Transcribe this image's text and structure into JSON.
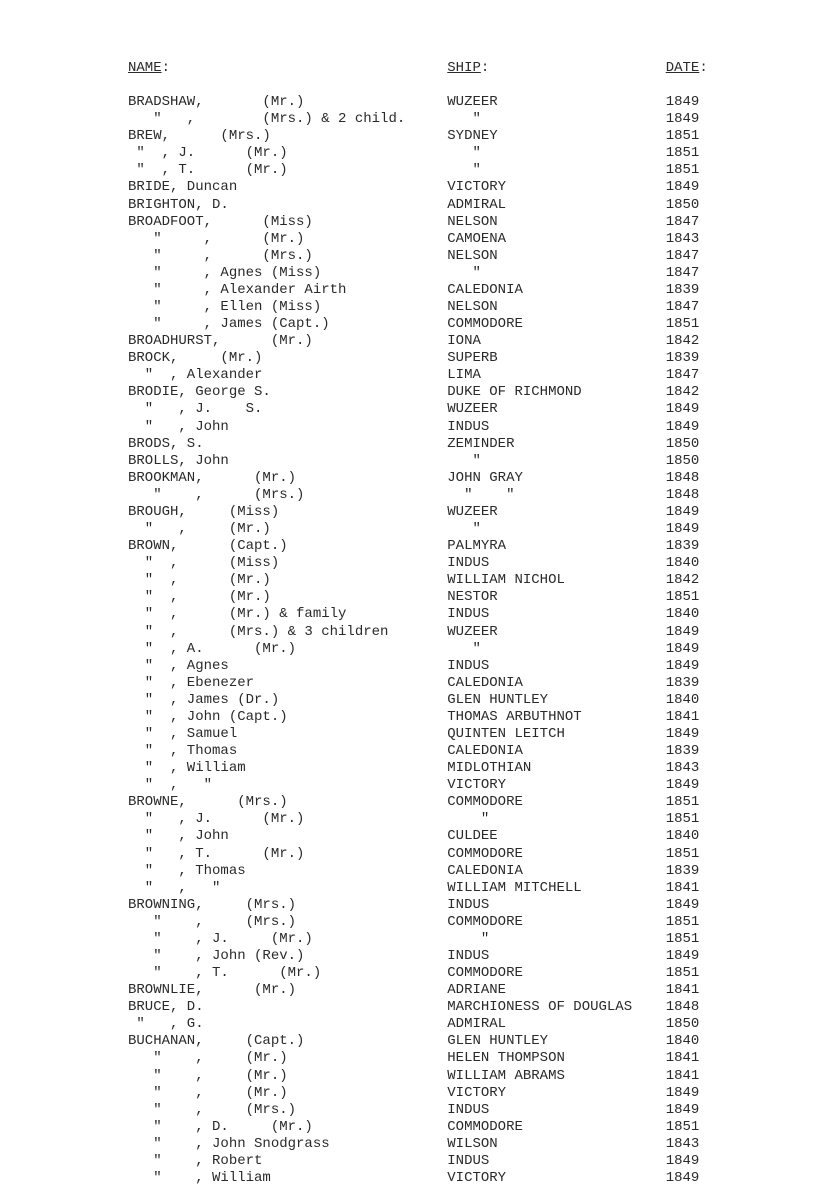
{
  "header": {
    "name": "NAME",
    "ship": "SHIP",
    "date": "DATE",
    "colon": ":"
  },
  "name_pad": 38,
  "ship_pad": 26,
  "rows": [
    {
      "name": "BRADSHAW,       (Mr.)",
      "ship": "WUZEER",
      "date": "1849"
    },
    {
      "name": "   \"   ,        (Mrs.) & 2 child.",
      "ship": "   \"",
      "date": "1849"
    },
    {
      "name": "BREW,      (Mrs.)",
      "ship": "SYDNEY",
      "date": "1851"
    },
    {
      "name": " \"  , J.      (Mr.)",
      "ship": "   \"",
      "date": "1851"
    },
    {
      "name": " \"  , T.      (Mr.)",
      "ship": "   \"",
      "date": "1851"
    },
    {
      "name": "BRIDE, Duncan",
      "ship": "VICTORY",
      "date": "1849"
    },
    {
      "name": "BRIGHTON, D.",
      "ship": "ADMIRAL",
      "date": "1850"
    },
    {
      "name": "BROADFOOT,      (Miss)",
      "ship": "NELSON",
      "date": "1847"
    },
    {
      "name": "   \"     ,      (Mr.)",
      "ship": "CAMOENA",
      "date": "1843"
    },
    {
      "name": "   \"     ,      (Mrs.)",
      "ship": "NELSON",
      "date": "1847"
    },
    {
      "name": "   \"     , Agnes (Miss)",
      "ship": "   \"",
      "date": "1847"
    },
    {
      "name": "   \"     , Alexander Airth",
      "ship": "CALEDONIA",
      "date": "1839"
    },
    {
      "name": "   \"     , Ellen (Miss)",
      "ship": "NELSON",
      "date": "1847"
    },
    {
      "name": "   \"     , James (Capt.)",
      "ship": "COMMODORE",
      "date": "1851"
    },
    {
      "name": "BROADHURST,      (Mr.)",
      "ship": "IONA",
      "date": "1842"
    },
    {
      "name": "BROCK,     (Mr.)",
      "ship": "SUPERB",
      "date": "1839"
    },
    {
      "name": "  \"  , Alexander",
      "ship": "LIMA",
      "date": "1847"
    },
    {
      "name": "BRODIE, George S.",
      "ship": "DUKE OF RICHMOND",
      "date": "1842"
    },
    {
      "name": "  \"   , J.    S.",
      "ship": "WUZEER",
      "date": "1849"
    },
    {
      "name": "  \"   , John",
      "ship": "INDUS",
      "date": "1849"
    },
    {
      "name": "BRODS, S.",
      "ship": "ZEMINDER",
      "date": "1850"
    },
    {
      "name": "BROLLS, John",
      "ship": "   \"",
      "date": "1850"
    },
    {
      "name": "BROOKMAN,      (Mr.)",
      "ship": "JOHN GRAY",
      "date": "1848"
    },
    {
      "name": "   \"    ,      (Mrs.)",
      "ship": "  \"    \"",
      "date": "1848"
    },
    {
      "name": "BROUGH,     (Miss)",
      "ship": "WUZEER",
      "date": "1849"
    },
    {
      "name": "  \"   ,     (Mr.)",
      "ship": "   \"",
      "date": "1849"
    },
    {
      "name": "BROWN,      (Capt.)",
      "ship": "PALMYRA",
      "date": "1839"
    },
    {
      "name": "  \"  ,      (Miss)",
      "ship": "INDUS",
      "date": "1840"
    },
    {
      "name": "  \"  ,      (Mr.)",
      "ship": "WILLIAM NICHOL",
      "date": "1842"
    },
    {
      "name": "  \"  ,      (Mr.)",
      "ship": "NESTOR",
      "date": "1851"
    },
    {
      "name": "  \"  ,      (Mr.) & family",
      "ship": "INDUS",
      "date": "1840"
    },
    {
      "name": "  \"  ,      (Mrs.) & 3 children",
      "ship": "WUZEER",
      "date": "1849"
    },
    {
      "name": "  \"  , A.      (Mr.)",
      "ship": "   \"",
      "date": "1849"
    },
    {
      "name": "  \"  , Agnes",
      "ship": "INDUS",
      "date": "1849"
    },
    {
      "name": "  \"  , Ebenezer",
      "ship": "CALEDONIA",
      "date": "1839"
    },
    {
      "name": "  \"  , James (Dr.)",
      "ship": "GLEN HUNTLEY",
      "date": "1840"
    },
    {
      "name": "  \"  , John (Capt.)",
      "ship": "THOMAS ARBUTHNOT",
      "date": "1841"
    },
    {
      "name": "  \"  , Samuel",
      "ship": "QUINTEN LEITCH",
      "date": "1849"
    },
    {
      "name": "  \"  , Thomas",
      "ship": "CALEDONIA",
      "date": "1839"
    },
    {
      "name": "  \"  , William",
      "ship": "MIDLOTHIAN",
      "date": "1843"
    },
    {
      "name": "  \"  ,   \"",
      "ship": "VICTORY",
      "date": "1849"
    },
    {
      "name": "BROWNE,      (Mrs.)",
      "ship": "COMMODORE",
      "date": "1851"
    },
    {
      "name": "  \"   , J.      (Mr.)",
      "ship": "    \"",
      "date": "1851"
    },
    {
      "name": "  \"   , John",
      "ship": "CULDEE",
      "date": "1840"
    },
    {
      "name": "  \"   , T.      (Mr.)",
      "ship": "COMMODORE",
      "date": "1851"
    },
    {
      "name": "  \"   , Thomas",
      "ship": "CALEDONIA",
      "date": "1839"
    },
    {
      "name": "  \"   ,   \"",
      "ship": "WILLIAM MITCHELL",
      "date": "1841"
    },
    {
      "name": "BROWNING,     (Mrs.)",
      "ship": "INDUS",
      "date": "1849"
    },
    {
      "name": "   \"    ,     (Mrs.)",
      "ship": "COMMODORE",
      "date": "1851"
    },
    {
      "name": "   \"    , J.     (Mr.)",
      "ship": "    \"",
      "date": "1851"
    },
    {
      "name": "   \"    , John (Rev.)",
      "ship": "INDUS",
      "date": "1849"
    },
    {
      "name": "   \"    , T.      (Mr.)",
      "ship": "COMMODORE",
      "date": "1851"
    },
    {
      "name": "BROWNLIE,      (Mr.)",
      "ship": "ADRIANE",
      "date": "1841"
    },
    {
      "name": "BRUCE, D.",
      "ship": "MARCHIONESS OF DOUGLAS",
      "date": "1848"
    },
    {
      "name": " \"   , G.",
      "ship": "ADMIRAL",
      "date": "1850"
    },
    {
      "name": "BUCHANAN,     (Capt.)",
      "ship": "GLEN HUNTLEY",
      "date": "1840"
    },
    {
      "name": "   \"    ,     (Mr.)",
      "ship": "HELEN THOMPSON",
      "date": "1841"
    },
    {
      "name": "   \"    ,     (Mr.)",
      "ship": "WILLIAM ABRAMS",
      "date": "1841"
    },
    {
      "name": "   \"    ,     (Mr.)",
      "ship": "VICTORY",
      "date": "1849"
    },
    {
      "name": "   \"    ,     (Mrs.)",
      "ship": "INDUS",
      "date": "1849"
    },
    {
      "name": "   \"    , D.     (Mr.)",
      "ship": "COMMODORE",
      "date": "1851"
    },
    {
      "name": "   \"    , John Snodgrass",
      "ship": "WILSON",
      "date": "1843"
    },
    {
      "name": "   \"    , Robert",
      "ship": "INDUS",
      "date": "1849"
    },
    {
      "name": "   \"    , William",
      "ship": "VICTORY",
      "date": "1849"
    }
  ]
}
